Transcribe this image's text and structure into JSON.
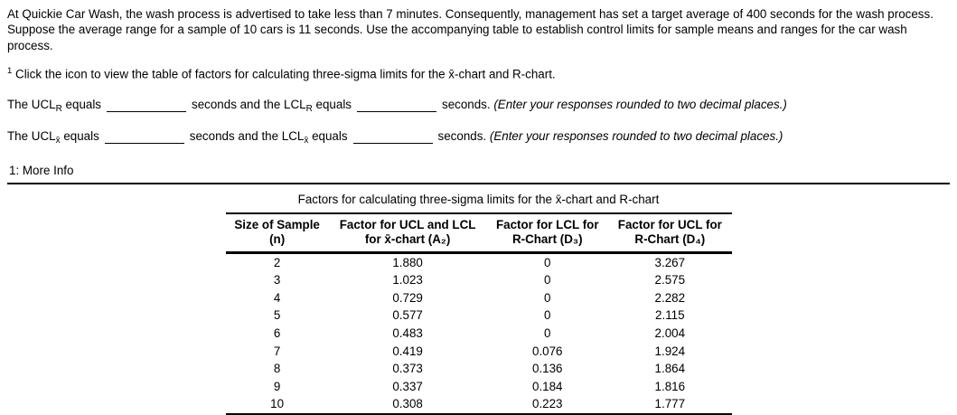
{
  "problem": {
    "statement": "At Quickie Car Wash, the wash process is advertised to take less than 7 minutes. Consequently, management has set a target average of 400 seconds for the wash process. Suppose the average range for a sample of 10 cars is 11 seconds. Use the accompanying table to establish control limits for sample means and ranges for the car wash process.",
    "footnote_marker": "1",
    "footnote_text": " Click the icon to view the table of factors for calculating three-sigma limits for the x̄-chart and R-chart."
  },
  "answers": {
    "r": {
      "lead": "The UCL",
      "sub1": "R",
      "eq1": " equals",
      "mid": "seconds and the LCL",
      "sub2": "R",
      "eq2": " equals",
      "tail": "seconds. ",
      "note": "(Enter your responses rounded to two decimal places.)"
    },
    "x": {
      "lead": "The UCL",
      "sub1": "x̄",
      "eq1": " equals",
      "mid": "seconds and the LCL",
      "sub2": "x̄",
      "eq2": " equals",
      "tail": "seconds. ",
      "note": "(Enter your responses rounded to two decimal places.)"
    }
  },
  "more_info": {
    "label": "1: More Info"
  },
  "table": {
    "title": "Factors for calculating three-sigma limits for the x̄-chart and R-chart",
    "columns": [
      {
        "line1": "Size of Sample",
        "line2": "(n)"
      },
      {
        "line1": "Factor for UCL and LCL",
        "line2": "for x̄-chart (A₂)"
      },
      {
        "line1": "Factor for LCL for",
        "line2": "R-Chart (D₃)"
      },
      {
        "line1": "Factor for UCL for",
        "line2": "R-Chart (D₄)"
      }
    ],
    "rows": [
      [
        "2",
        "1.880",
        "0",
        "3.267"
      ],
      [
        "3",
        "1.023",
        "0",
        "2.575"
      ],
      [
        "4",
        "0.729",
        "0",
        "2.282"
      ],
      [
        "5",
        "0.577",
        "0",
        "2.115"
      ],
      [
        "6",
        "0.483",
        "0",
        "2.004"
      ],
      [
        "7",
        "0.419",
        "0.076",
        "1.924"
      ],
      [
        "8",
        "0.373",
        "0.136",
        "1.864"
      ],
      [
        "9",
        "0.337",
        "0.184",
        "1.816"
      ],
      [
        "10",
        "0.308",
        "0.223",
        "1.777"
      ]
    ]
  }
}
